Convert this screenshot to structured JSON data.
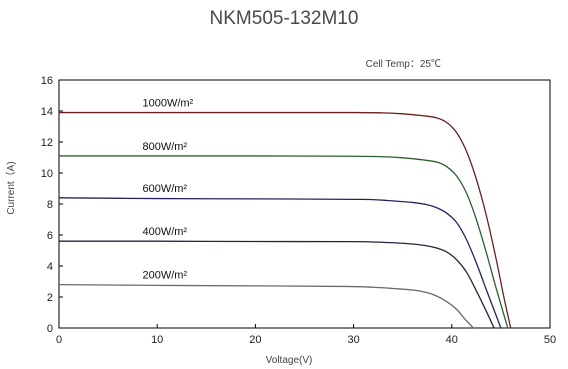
{
  "chart_data": {
    "type": "line",
    "title": "NKM505-132M10",
    "annotation": "Cell Temp：25℃",
    "xlabel": "Voltage(V)",
    "ylabel": "Current（A)",
    "xlim": [
      0,
      50
    ],
    "ylim": [
      0,
      16
    ],
    "xticks": [
      0,
      10,
      20,
      30,
      40,
      50
    ],
    "yticks": [
      0,
      2,
      4,
      6,
      8,
      10,
      12,
      14,
      16
    ],
    "grid": false,
    "legend": "inline labels above curves",
    "series": [
      {
        "name": "1000W/m²",
        "color": "#6b1f1f",
        "x": [
          0,
          10,
          20,
          30,
          33,
          35,
          37,
          38.5,
          39.5,
          40.5,
          41.5,
          42.5,
          43.5,
          44.5,
          45.3,
          46.0
        ],
        "y": [
          13.9,
          13.9,
          13.9,
          13.9,
          13.88,
          13.82,
          13.7,
          13.55,
          13.25,
          12.6,
          11.4,
          9.6,
          7.3,
          4.5,
          2.0,
          0
        ]
      },
      {
        "name": "800W/m²",
        "color": "#2e5e2e",
        "x": [
          0,
          10,
          20,
          30,
          33,
          35,
          37,
          38.5,
          39.5,
          40.5,
          41.5,
          42.5,
          43.5,
          44.5,
          45.7
        ],
        "y": [
          11.1,
          11.1,
          11.1,
          11.08,
          11.05,
          10.98,
          10.85,
          10.7,
          10.4,
          9.8,
          8.7,
          7.0,
          4.9,
          2.6,
          0
        ]
      },
      {
        "name": "600W/m²",
        "color": "#26265e",
        "x": [
          0,
          10,
          20,
          30,
          32,
          34,
          36,
          37.5,
          38.5,
          39.5,
          40.5,
          41.5,
          42.5,
          43.5,
          45.0
        ],
        "y": [
          8.4,
          8.35,
          8.33,
          8.3,
          8.28,
          8.2,
          8.1,
          7.95,
          7.75,
          7.4,
          6.8,
          5.7,
          4.2,
          2.5,
          0
        ]
      },
      {
        "name": "400W/m²",
        "color": "#1f2740",
        "x": [
          0,
          10,
          20,
          30,
          32,
          34,
          36,
          37.5,
          38.5,
          39.5,
          40.5,
          41.5,
          42.5,
          43.5,
          44.3
        ],
        "y": [
          5.6,
          5.6,
          5.58,
          5.57,
          5.55,
          5.5,
          5.42,
          5.3,
          5.15,
          4.9,
          4.4,
          3.6,
          2.4,
          1.1,
          0
        ]
      },
      {
        "name": "200W/m²",
        "color": "#6a6a6a",
        "x": [
          0,
          10,
          20,
          29,
          32,
          34,
          36,
          37.5,
          38.5,
          39.5,
          40.5,
          41.3,
          42.2
        ],
        "y": [
          2.8,
          2.75,
          2.72,
          2.68,
          2.63,
          2.55,
          2.45,
          2.28,
          2.05,
          1.7,
          1.2,
          0.6,
          0
        ]
      }
    ]
  }
}
